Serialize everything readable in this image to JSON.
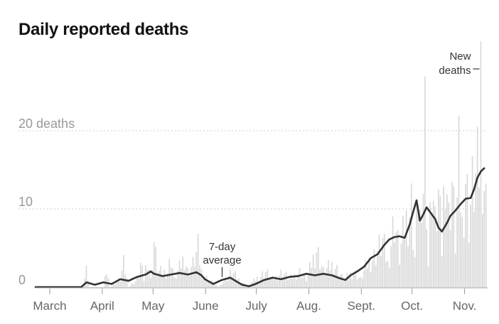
{
  "chart_data": {
    "type": "bar",
    "title": "Daily reported deaths",
    "xlabel": "",
    "ylabel": "",
    "ylim": [
      0,
      29
    ],
    "grid": true,
    "y_ticks": [
      {
        "value": 0,
        "label": "0"
      },
      {
        "value": 10,
        "label": "10"
      },
      {
        "value": 20,
        "label": "20 deaths"
      }
    ],
    "x_ticks": [
      {
        "day": 0,
        "label": "March"
      },
      {
        "day": 31,
        "label": "April"
      },
      {
        "day": 61,
        "label": "May"
      },
      {
        "day": 92,
        "label": "June"
      },
      {
        "day": 122,
        "label": "July"
      },
      {
        "day": 153,
        "label": "Aug."
      },
      {
        "day": 184,
        "label": "Sept."
      },
      {
        "day": 214,
        "label": "Oct."
      },
      {
        "day": 245,
        "label": "Nov."
      }
    ],
    "series": [
      {
        "name": "New deaths",
        "kind": "bar",
        "color": "#d9d9d9",
        "anchors": [
          [
            0,
            0
          ],
          [
            28,
            0
          ],
          [
            29,
            1
          ],
          [
            30,
            2
          ],
          [
            32,
            0
          ],
          [
            40,
            0
          ],
          [
            41,
            1
          ],
          [
            42,
            2
          ],
          [
            44,
            0
          ],
          [
            50,
            1
          ],
          [
            52,
            3
          ],
          [
            55,
            0
          ],
          [
            60,
            1
          ],
          [
            62,
            3
          ],
          [
            64,
            1
          ],
          [
            66,
            4
          ],
          [
            68,
            1
          ],
          [
            70,
            6
          ],
          [
            72,
            2
          ],
          [
            78,
            2
          ],
          [
            80,
            4
          ],
          [
            82,
            1
          ],
          [
            86,
            3
          ],
          [
            88,
            4
          ],
          [
            90,
            2
          ],
          [
            93,
            3
          ],
          [
            96,
            5
          ],
          [
            98,
            2
          ],
          [
            102,
            1
          ],
          [
            108,
            0
          ],
          [
            112,
            1
          ],
          [
            116,
            2
          ],
          [
            120,
            1
          ],
          [
            125,
            0
          ],
          [
            130,
            1
          ],
          [
            136,
            2
          ],
          [
            140,
            1
          ],
          [
            146,
            2
          ],
          [
            150,
            1
          ],
          [
            156,
            2
          ],
          [
            160,
            1
          ],
          [
            166,
            5
          ],
          [
            170,
            2
          ],
          [
            176,
            3
          ],
          [
            182,
            1
          ],
          [
            188,
            2
          ],
          [
            192,
            1
          ],
          [
            196,
            3
          ],
          [
            200,
            4
          ],
          [
            205,
            6
          ],
          [
            208,
            3
          ],
          [
            212,
            9
          ],
          [
            215,
            4
          ],
          [
            218,
            8
          ],
          [
            222,
            11
          ],
          [
            224,
            4
          ],
          [
            226,
            13
          ],
          [
            228,
            6
          ],
          [
            230,
            24
          ],
          [
            232,
            3
          ],
          [
            234,
            15
          ],
          [
            236,
            8
          ],
          [
            238,
            12
          ],
          [
            240,
            5
          ],
          [
            242,
            18
          ],
          [
            244,
            9
          ],
          [
            246,
            14
          ],
          [
            248,
            6
          ],
          [
            250,
            16
          ],
          [
            252,
            8
          ],
          [
            254,
            15
          ],
          [
            256,
            9
          ],
          [
            258,
            13
          ],
          [
            260,
            14
          ],
          [
            262,
            16
          ],
          [
            263,
            28
          ],
          [
            264,
            17
          ],
          [
            266,
            11
          ],
          [
            267,
            0
          ]
        ]
      },
      {
        "name": "7-day average",
        "kind": "line",
        "color": "#333333",
        "points": [
          [
            0,
            0
          ],
          [
            27,
            0
          ],
          [
            30,
            0.6
          ],
          [
            35,
            0.3
          ],
          [
            40,
            0.6
          ],
          [
            45,
            0.4
          ],
          [
            50,
            1.0
          ],
          [
            55,
            0.8
          ],
          [
            60,
            1.3
          ],
          [
            65,
            1.6
          ],
          [
            68,
            2.0
          ],
          [
            70,
            1.7
          ],
          [
            75,
            1.4
          ],
          [
            80,
            1.6
          ],
          [
            85,
            1.8
          ],
          [
            90,
            1.6
          ],
          [
            95,
            1.9
          ],
          [
            98,
            1.5
          ],
          [
            100,
            1.0
          ],
          [
            105,
            0.4
          ],
          [
            110,
            0.9
          ],
          [
            115,
            1.2
          ],
          [
            118,
            0.8
          ],
          [
            122,
            0.3
          ],
          [
            126,
            0.1
          ],
          [
            130,
            0.4
          ],
          [
            135,
            0.9
          ],
          [
            140,
            1.2
          ],
          [
            145,
            1.0
          ],
          [
            150,
            1.3
          ],
          [
            155,
            1.4
          ],
          [
            160,
            1.7
          ],
          [
            165,
            1.5
          ],
          [
            170,
            1.7
          ],
          [
            175,
            1.5
          ],
          [
            180,
            1.1
          ],
          [
            183,
            0.9
          ],
          [
            186,
            1.5
          ],
          [
            190,
            2.0
          ],
          [
            194,
            2.6
          ],
          [
            198,
            3.7
          ],
          [
            202,
            4.2
          ],
          [
            206,
            5.4
          ],
          [
            209,
            6.1
          ],
          [
            212,
            6.4
          ],
          [
            215,
            6.5
          ],
          [
            218,
            6.3
          ],
          [
            221,
            8.0
          ],
          [
            223,
            9.6
          ],
          [
            225,
            11.1
          ],
          [
            227,
            8.5
          ],
          [
            229,
            9.3
          ],
          [
            231,
            10.2
          ],
          [
            233,
            9.6
          ],
          [
            236,
            8.7
          ],
          [
            238,
            7.6
          ],
          [
            240,
            7.1
          ],
          [
            243,
            8.2
          ],
          [
            245,
            9.1
          ],
          [
            248,
            9.8
          ],
          [
            251,
            10.6
          ],
          [
            254,
            11.3
          ],
          [
            257,
            11.4
          ],
          [
            259,
            12.5
          ],
          [
            261,
            14.0
          ],
          [
            263,
            14.8
          ],
          [
            265,
            15.2
          ]
        ]
      }
    ],
    "annotations": [
      {
        "lines": [
          "New",
          "deaths"
        ],
        "target_series": "New deaths",
        "day": 263
      },
      {
        "lines": [
          "7-day",
          "average"
        ],
        "target_series": "7-day average",
        "day": 106
      }
    ]
  }
}
